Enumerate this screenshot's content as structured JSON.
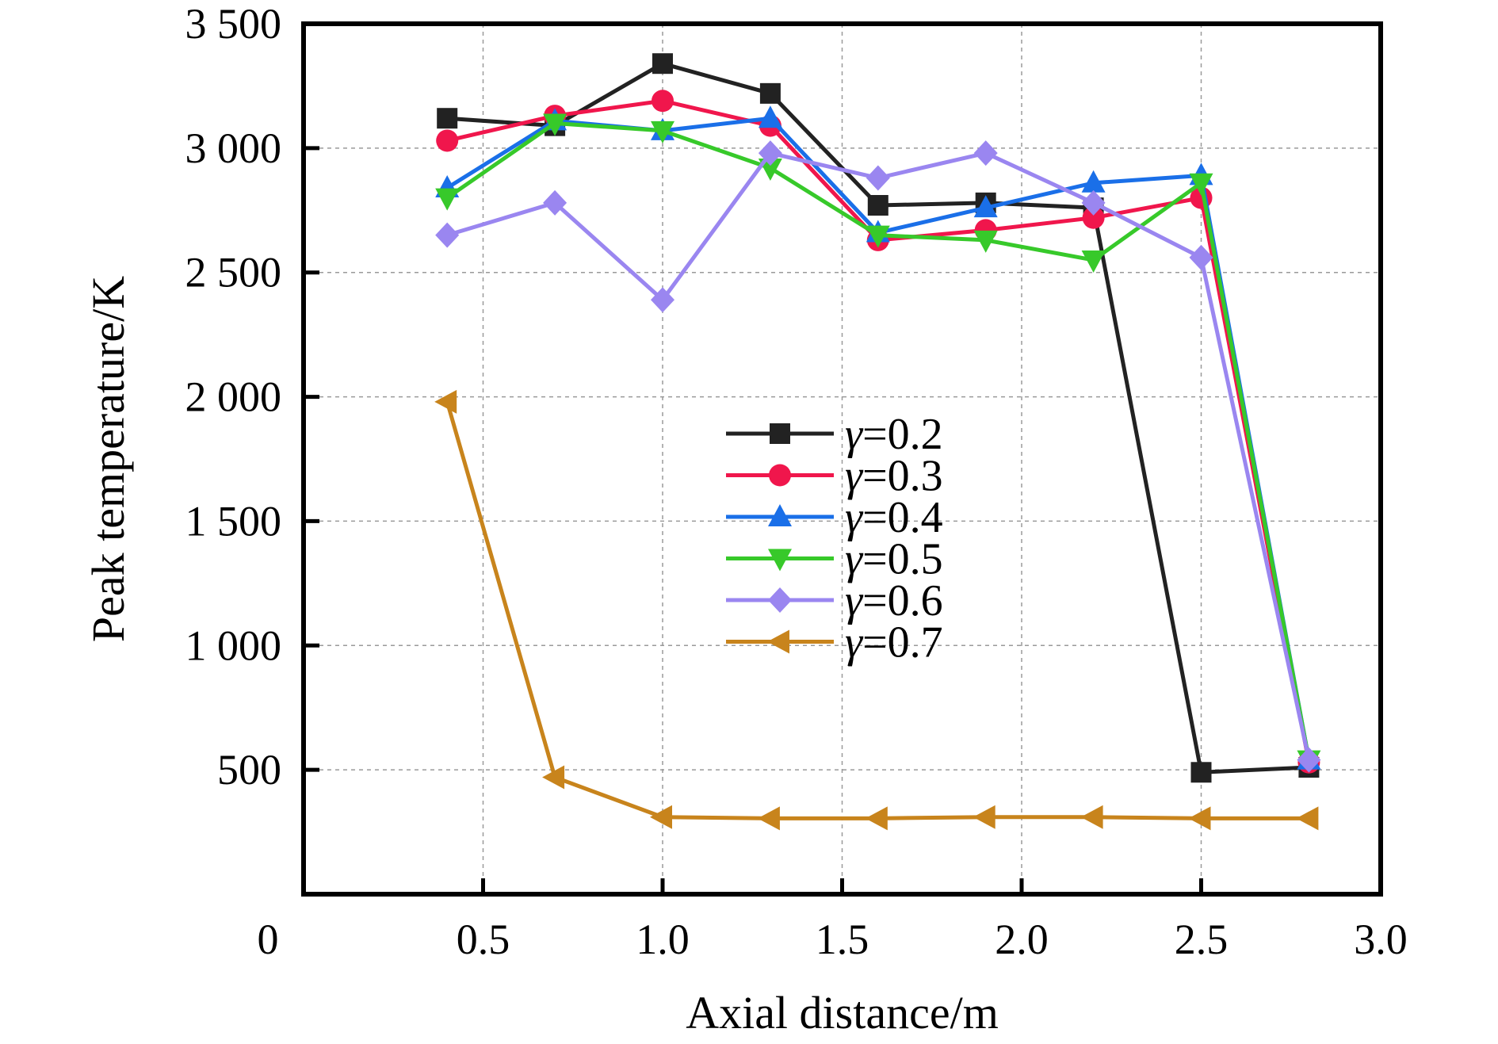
{
  "chart_data": {
    "type": "line",
    "xlabel": "Axial distance/m",
    "ylabel": "Peak temperature/K",
    "xlim": [
      0,
      3.0
    ],
    "ylim": [
      0,
      3500
    ],
    "x_ticks": [
      0.5,
      1.0,
      1.5,
      2.0,
      2.5,
      3.0
    ],
    "x_tick_labels": [
      "0.5",
      "1.0",
      "1.5",
      "2.0",
      "2.5",
      "3.0"
    ],
    "y_ticks": [
      500,
      1000,
      1500,
      2000,
      2500,
      3000,
      3500
    ],
    "y_tick_labels": [
      "500",
      "1 000",
      "1 500",
      "2 000",
      "2 500",
      "3 000",
      "3 500"
    ],
    "origin_label": "0",
    "grid": true,
    "legend_position": "center",
    "x": [
      0.4,
      0.7,
      1.0,
      1.3,
      1.6,
      1.9,
      2.2,
      2.5,
      2.8
    ],
    "series": [
      {
        "name": "γ=0.2",
        "symbol": "γ",
        "value_text": "=0.2",
        "color": "#222222",
        "marker": "square",
        "values": [
          3120,
          3090,
          3340,
          3220,
          2770,
          2780,
          2760,
          490,
          510
        ]
      },
      {
        "name": "γ=0.3",
        "symbol": "γ",
        "value_text": "=0.3",
        "color": "#f0164c",
        "marker": "circle",
        "values": [
          3030,
          3130,
          3190,
          3090,
          2630,
          2670,
          2720,
          2800,
          530
        ]
      },
      {
        "name": "γ=0.4",
        "symbol": "γ",
        "value_text": "=0.4",
        "color": "#1a6fe8",
        "marker": "triangle-up",
        "values": [
          2840,
          3110,
          3070,
          3120,
          2660,
          2760,
          2860,
          2890,
          540
        ]
      },
      {
        "name": "γ=0.5",
        "symbol": "γ",
        "value_text": "=0.5",
        "color": "#37c92a",
        "marker": "triangle-down",
        "values": [
          2800,
          3100,
          3070,
          2920,
          2650,
          2630,
          2550,
          2860,
          540
        ]
      },
      {
        "name": "γ=0.6",
        "symbol": "γ",
        "value_text": "=0.6",
        "color": "#9a86f0",
        "marker": "diamond",
        "values": [
          2650,
          2780,
          2390,
          2980,
          2880,
          2980,
          2780,
          2560,
          540
        ]
      },
      {
        "name": "γ=0.7",
        "symbol": "γ",
        "value_text": "=0.7",
        "color": "#c8841c",
        "marker": "triangle-left",
        "values": [
          1980,
          470,
          310,
          305,
          305,
          310,
          310,
          305,
          305
        ]
      }
    ]
  }
}
